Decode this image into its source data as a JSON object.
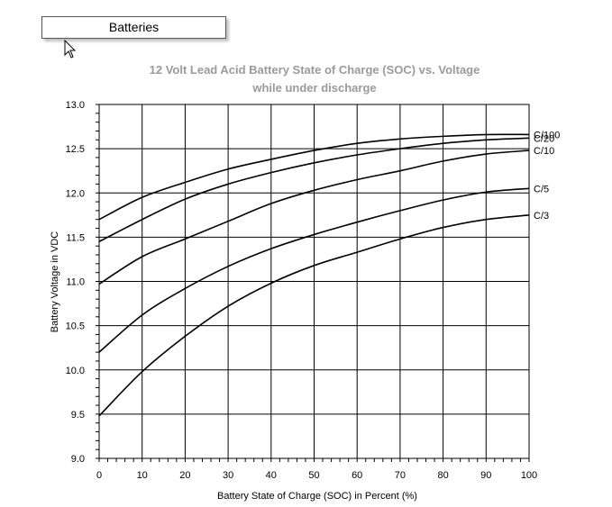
{
  "tab": {
    "label": "Batteries"
  },
  "chart_data": {
    "type": "line",
    "title": "12 Volt Lead Acid Battery State of Charge (SOC) vs. Voltage",
    "subtitle": "while under discharge",
    "xlabel": "Battery State of Charge (SOC) in Percent (%)",
    "ylabel": "Battery Voltage in VDC",
    "xlim": [
      0,
      100
    ],
    "ylim": [
      9.0,
      13.0
    ],
    "x_ticks": [
      "0",
      "10",
      "20",
      "30",
      "40",
      "50",
      "60",
      "70",
      "80",
      "90",
      "100"
    ],
    "y_ticks": [
      "9.0",
      "9.5",
      "10.0",
      "10.5",
      "11.0",
      "11.5",
      "12.0",
      "12.5",
      "13.0"
    ],
    "grid": true,
    "legend": "series labels at right end of lines",
    "series": [
      {
        "name": "C/100",
        "x": [
          0,
          10,
          20,
          30,
          40,
          50,
          60,
          70,
          80,
          90,
          100
        ],
        "values": [
          11.7,
          11.95,
          12.12,
          12.27,
          12.38,
          12.48,
          12.56,
          12.61,
          12.64,
          12.66,
          12.66
        ]
      },
      {
        "name": "C/20",
        "x": [
          0,
          10,
          20,
          30,
          40,
          50,
          60,
          70,
          80,
          90,
          100
        ],
        "values": [
          11.45,
          11.7,
          11.93,
          12.1,
          12.23,
          12.34,
          12.43,
          12.5,
          12.56,
          12.6,
          12.62
        ]
      },
      {
        "name": "C/10",
        "x": [
          0,
          10,
          20,
          30,
          40,
          50,
          60,
          70,
          80,
          90,
          100
        ],
        "values": [
          10.97,
          11.28,
          11.48,
          11.68,
          11.88,
          12.03,
          12.15,
          12.25,
          12.36,
          12.44,
          12.48
        ]
      },
      {
        "name": "C/5",
        "x": [
          0,
          10,
          20,
          30,
          40,
          50,
          60,
          70,
          80,
          90,
          100
        ],
        "values": [
          10.2,
          10.62,
          10.92,
          11.17,
          11.37,
          11.53,
          11.67,
          11.8,
          11.92,
          12.01,
          12.05
        ]
      },
      {
        "name": "C/3",
        "x": [
          0,
          10,
          20,
          30,
          40,
          50,
          60,
          70,
          80,
          90,
          100
        ],
        "values": [
          9.48,
          9.98,
          10.38,
          10.72,
          10.98,
          11.18,
          11.33,
          11.48,
          11.61,
          11.7,
          11.75
        ]
      }
    ]
  }
}
